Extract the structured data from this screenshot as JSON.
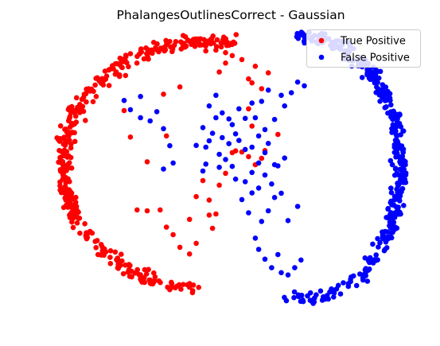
{
  "chart_data": {
    "type": "scatter",
    "title": "PhalangesOutlinesCorrect - Gaussian",
    "xlabel": "",
    "ylabel": "",
    "axes_visible": false,
    "grid": false,
    "legend": {
      "placement": "top-right",
      "entries": [
        "True Positive",
        "False Positive"
      ]
    },
    "xlim": [
      0,
      100
    ],
    "ylim": [
      0,
      100
    ],
    "series": [
      {
        "name": "True Positive",
        "color": "#ff0000",
        "arcs": [
          {
            "cx": 43.8,
            "cy": 53.1,
            "rx": 39.1,
            "ry": 43.1,
            "from": 80,
            "to": 172,
            "n": 200,
            "jitter": 2.4
          },
          {
            "cx": 43.8,
            "cy": 53.1,
            "rx": 39.1,
            "ry": 43.1,
            "from": 172,
            "to": 205,
            "n": 120,
            "jitter": 1.8
          },
          {
            "cx": 43.8,
            "cy": 53.1,
            "rx": 39.1,
            "ry": 43.1,
            "from": 205,
            "to": 265,
            "n": 100,
            "jitter": 2.4
          }
        ],
        "points": [
          [
            37.9,
            94.5
          ],
          [
            39.7,
            96.6
          ],
          [
            41.5,
            95.2
          ],
          [
            43.2,
            92.8
          ],
          [
            45.9,
            93.1
          ],
          [
            48.5,
            92.2
          ],
          [
            50.3,
            91.2
          ],
          [
            52.9,
            89.8
          ],
          [
            46.8,
            85.5
          ],
          [
            48.5,
            88.6
          ],
          [
            54.7,
            83.1
          ],
          [
            56.5,
            87.5
          ],
          [
            55.6,
            81.7
          ],
          [
            58.2,
            79.7
          ],
          [
            60.0,
            85.2
          ],
          [
            31.8,
            77.8
          ],
          [
            36.2,
            80.3
          ],
          [
            21.2,
            72.1
          ],
          [
            32.6,
            63.3
          ],
          [
            22.9,
            62.9
          ],
          [
            27.4,
            54.3
          ],
          [
            24.7,
            37.6
          ],
          [
            27.4,
            37.3
          ],
          [
            30.9,
            37.6
          ],
          [
            32.6,
            31.6
          ],
          [
            34.4,
            29.0
          ],
          [
            38.8,
            34.3
          ],
          [
            40.6,
            26.0
          ],
          [
            44.1,
            35.8
          ],
          [
            40.6,
            42.2
          ],
          [
            42.4,
            47.8
          ],
          [
            44.1,
            41.0
          ],
          [
            45.9,
            36.2
          ],
          [
            48.5,
            50.3
          ],
          [
            50.3,
            57.5
          ],
          [
            51.2,
            58.1
          ],
          [
            52.9,
            57.7
          ],
          [
            54.7,
            56.1
          ],
          [
            56.5,
            53.3
          ],
          [
            58.2,
            55.5
          ],
          [
            59.1,
            58.2
          ],
          [
            62.6,
            63.8
          ],
          [
            46.8,
            46.2
          ],
          [
            45.0,
            31.2
          ],
          [
            36.2,
            24.6
          ],
          [
            38.8,
            22.3
          ],
          [
            55.6,
            66.7
          ],
          [
            54.7,
            72.7
          ]
        ]
      },
      {
        "name": "False Positive",
        "color": "#0000ff",
        "arcs": [
          {
            "cx": 69.6,
            "cy": 52.3,
            "rx": 26.0,
            "ry": 45.9,
            "from": -100,
            "to": -35,
            "n": 70,
            "jitter": 2.2
          },
          {
            "cx": 69.6,
            "cy": 52.3,
            "rx": 26.0,
            "ry": 45.9,
            "from": -35,
            "to": 50,
            "n": 230,
            "jitter": 2.0
          },
          {
            "cx": 69.6,
            "cy": 52.3,
            "rx": 26.0,
            "ry": 45.9,
            "from": 50,
            "to": 95,
            "n": 80,
            "jitter": 2.2
          }
        ],
        "points": [
          [
            21.2,
            75.6
          ],
          [
            22.9,
            72.4
          ],
          [
            25.6,
            77.0
          ],
          [
            25.6,
            69.6
          ],
          [
            28.2,
            68.5
          ],
          [
            30.0,
            71.7
          ],
          [
            31.8,
            65.8
          ],
          [
            33.5,
            59.9
          ],
          [
            34.4,
            53.9
          ],
          [
            44.1,
            73.7
          ],
          [
            45.9,
            77.4
          ],
          [
            47.6,
            71.3
          ],
          [
            45.9,
            69.6
          ],
          [
            49.4,
            69.2
          ],
          [
            51.2,
            64.0
          ],
          [
            53.8,
            69.4
          ],
          [
            52.1,
            72.7
          ],
          [
            55.6,
            74.7
          ],
          [
            58.2,
            75.3
          ],
          [
            60.0,
            79.2
          ],
          [
            63.5,
            77.4
          ],
          [
            64.4,
            73.7
          ],
          [
            66.2,
            78.3
          ],
          [
            67.9,
            82.0
          ],
          [
            69.7,
            80.7
          ],
          [
            44.1,
            61.6
          ],
          [
            46.8,
            56.9
          ],
          [
            48.5,
            55.1
          ],
          [
            50.3,
            52.7
          ],
          [
            51.2,
            48.3
          ],
          [
            53.8,
            47.4
          ],
          [
            55.6,
            50.6
          ],
          [
            57.4,
            53.9
          ],
          [
            59.1,
            49.7
          ],
          [
            60.9,
            46.6
          ],
          [
            62.6,
            52.9
          ],
          [
            64.4,
            55.6
          ],
          [
            61.7,
            41.9
          ],
          [
            60.0,
            37.3
          ],
          [
            58.2,
            33.6
          ],
          [
            56.5,
            27.8
          ],
          [
            57.4,
            23.9
          ],
          [
            59.1,
            20.5
          ],
          [
            60.9,
            17.5
          ],
          [
            62.6,
            22.1
          ],
          [
            63.5,
            15.8
          ],
          [
            65.3,
            15.0
          ],
          [
            67.1,
            17.5
          ],
          [
            68.8,
            20.2
          ],
          [
            55.6,
            59.4
          ],
          [
            57.4,
            63.3
          ],
          [
            59.1,
            65.5
          ],
          [
            60.0,
            60.7
          ],
          [
            61.7,
            69.0
          ],
          [
            52.1,
            61.7
          ],
          [
            53.8,
            58.6
          ],
          [
            49.4,
            60.6
          ],
          [
            47.6,
            62.7
          ],
          [
            45.0,
            64.2
          ],
          [
            43.2,
            59.4
          ],
          [
            40.6,
            60.0
          ],
          [
            42.4,
            66.2
          ],
          [
            50.3,
            67.2
          ],
          [
            56.5,
            69.6
          ],
          [
            65.3,
            33.9
          ],
          [
            63.5,
            43.4
          ],
          [
            67.9,
            38.8
          ],
          [
            61.7,
            53.3
          ],
          [
            59.1,
            57.5
          ],
          [
            57.4,
            45.2
          ],
          [
            55.6,
            43.5
          ],
          [
            54.7,
            36.6
          ],
          [
            52.9,
            41.2
          ],
          [
            31.8,
            51.8
          ],
          [
            43.2,
            53.5
          ],
          [
            42.4,
            51.1
          ],
          [
            46.8,
            52.4
          ]
        ]
      }
    ]
  }
}
